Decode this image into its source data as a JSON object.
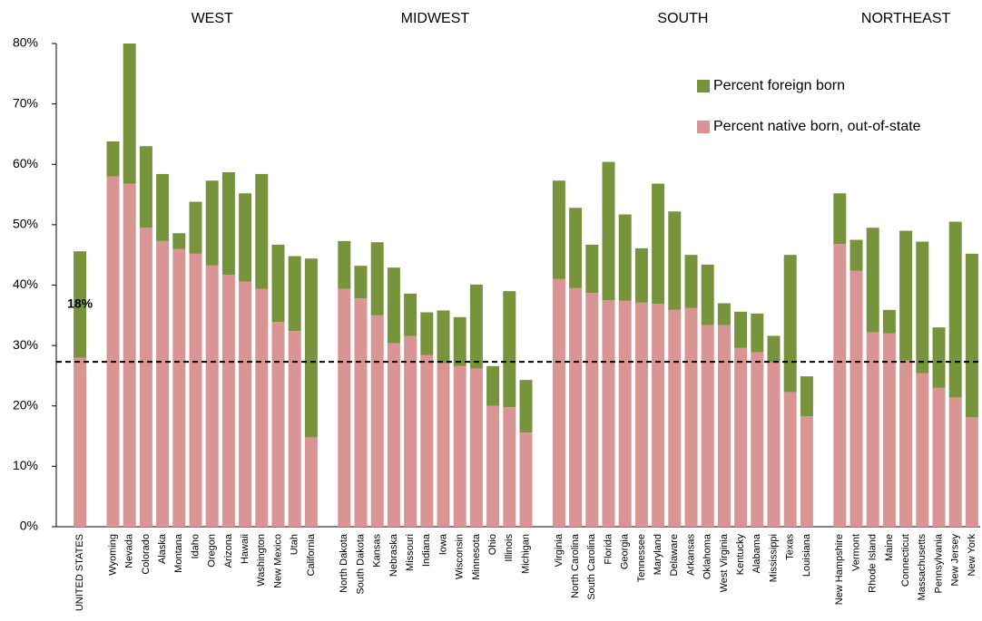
{
  "chart_data": {
    "type": "stacked_bar",
    "regions": [
      "WEST",
      "MIDWEST",
      "SOUTH",
      "NORTHEAST"
    ],
    "categories": [
      "UNITED STATES",
      null,
      "Wyoming",
      "Nevada",
      "Colorado",
      "Alaska",
      "Montana",
      "Idaho",
      "Oregon",
      "Arizona",
      "Hawaii",
      "Washington",
      "New Mexico",
      "Utah",
      "California",
      null,
      "North Dakota",
      "South Dakota",
      "Kansas",
      "Nebraska",
      "Missouri",
      "Indiana",
      "Iowa",
      "Wisconsin",
      "Minnesota",
      "Ohio",
      "Illinois",
      "Michigan",
      null,
      "Virginia",
      "North Carolina",
      "South Carolina",
      "Florida",
      "Georgia",
      "Tennessee",
      "Maryland",
      "Delaware",
      "Arkansas",
      "Oklahoma",
      "West Virginia",
      "Kentucky",
      "Alabama",
      "Mississippi",
      "Texas",
      "Louisiana",
      null,
      "New Hampshire",
      "Vermont",
      "Rhode Island",
      "Maine",
      "Connecticut",
      "Massachusetts",
      "Pennsylvania",
      "New Jersey",
      "New York"
    ],
    "series": [
      {
        "name": "Percent native born, out-of-state",
        "color": "#d99594",
        "values": [
          28,
          null,
          58,
          56.8,
          49.5,
          47.3,
          46,
          45.2,
          43.3,
          41.7,
          40.6,
          39.4,
          33.9,
          32.4,
          14.8,
          null,
          39.4,
          37.8,
          35,
          30.4,
          31.6,
          28.4,
          27.1,
          26.6,
          26.2,
          20,
          19.8,
          15.6,
          null,
          41,
          39.5,
          38.7,
          37.5,
          37.4,
          37.1,
          36.9,
          35.9,
          36.2,
          33.4,
          33.4,
          29.6,
          28.9,
          27.2,
          22.3,
          18.3,
          null,
          46.8,
          42.4,
          32.2,
          32,
          27.5,
          25.4,
          23,
          21.4,
          18.1
        ]
      },
      {
        "name": "Percent foreign born",
        "color": "#77933c",
        "values": [
          17.6,
          null,
          5.8,
          23.2,
          13.5,
          11.1,
          2.6,
          8.6,
          14.0,
          17.0,
          14.6,
          19.0,
          12.8,
          12.4,
          29.6,
          null,
          7.9,
          5.4,
          12.1,
          12.5,
          7.0,
          7.1,
          8.7,
          8.1,
          13.9,
          6.6,
          19.2,
          8.7,
          null,
          16.3,
          13.3,
          8.0,
          22.9,
          14.3,
          9.0,
          19.9,
          16.3,
          8.8,
          10.0,
          3.6,
          6.0,
          6.4,
          4.4,
          22.7,
          6.6,
          null,
          8.4,
          5.1,
          17.3,
          3.9,
          21.5,
          21.8,
          10.0,
          29.1,
          27.1
        ],
        "value_labels": [
          "18%",
          null,
          null,
          null,
          null,
          null,
          null,
          null,
          null,
          null,
          null,
          null,
          null,
          null,
          null,
          null,
          null,
          null,
          null,
          null,
          null,
          null,
          null,
          null,
          null,
          null,
          null,
          null,
          null,
          null,
          null,
          null,
          null,
          null,
          null,
          null,
          null,
          null,
          null,
          null,
          null,
          null,
          null,
          null,
          null,
          null,
          null,
          null,
          null,
          null,
          null,
          null,
          null,
          null,
          null
        ]
      }
    ],
    "reference_line": 27.3,
    "ylim": [
      0,
      80
    ],
    "yticks": [
      {
        "value": 0,
        "label": "0%"
      },
      {
        "value": 10,
        "label": "10%"
      },
      {
        "value": 20,
        "label": "20%"
      },
      {
        "value": 30,
        "label": "30%"
      },
      {
        "value": 40,
        "label": "40%"
      },
      {
        "value": 50,
        "label": "50%"
      },
      {
        "value": 60,
        "label": "60%"
      },
      {
        "value": 70,
        "label": "70%"
      },
      {
        "value": 80,
        "label": "80%"
      }
    ],
    "grid": false,
    "legend": "upper right"
  }
}
